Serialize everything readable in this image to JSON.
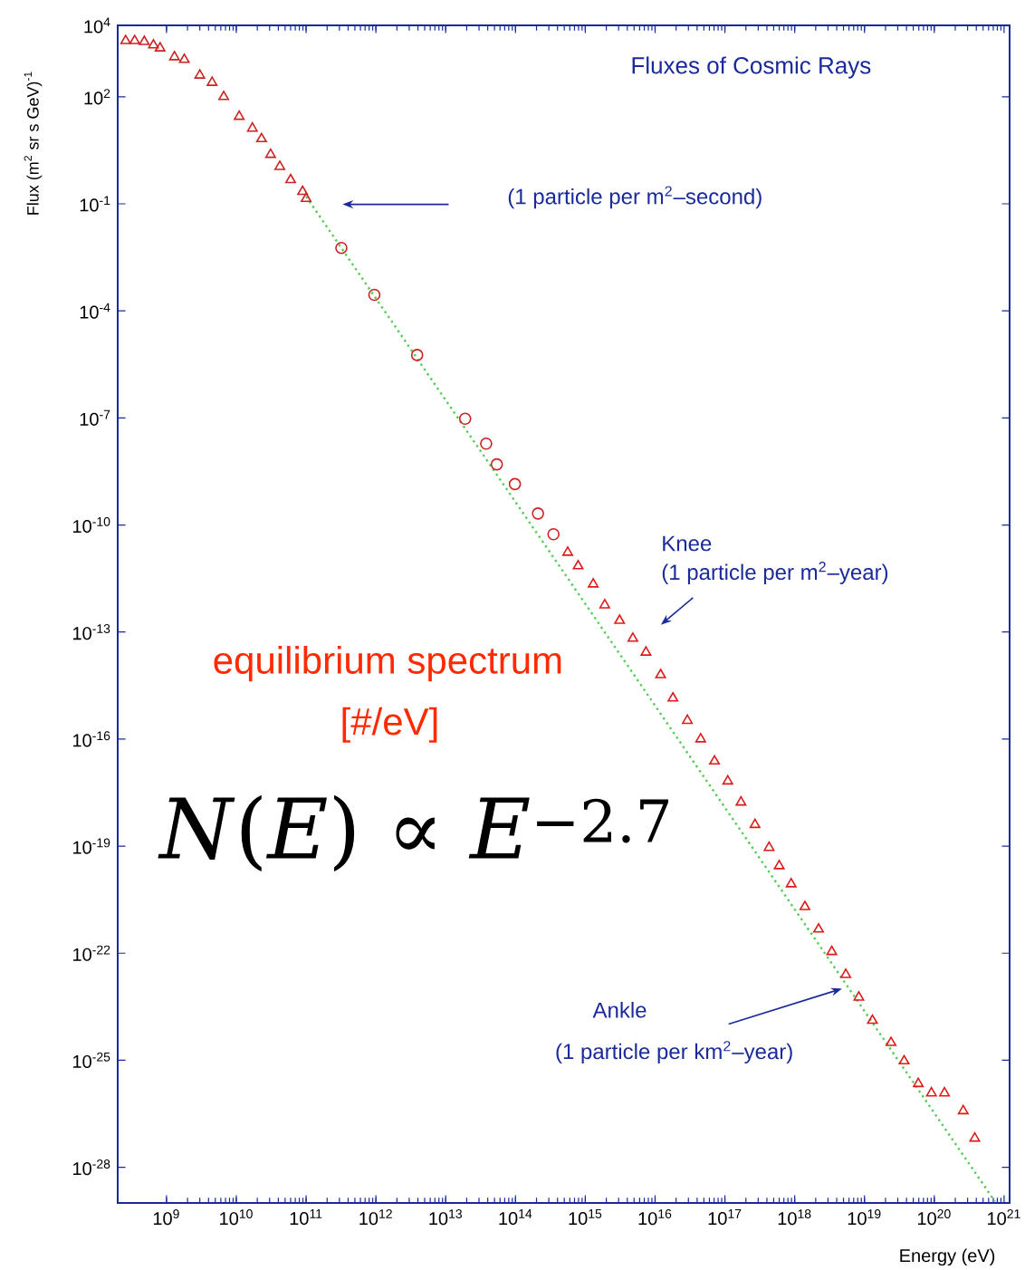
{
  "chart_data": {
    "type": "scatter",
    "title": "Fluxes of Cosmic Rays",
    "xlabel": "Energy (eV)",
    "ylabel": "Flux (m$^{2}$ sr s GeV)$^{-1}$",
    "log": "xy",
    "xlim": [
      200000000.0,
      1.2e+21
    ],
    "ylim": [
      1e-29,
      10000.0
    ],
    "xticks": [
      {
        "value": 1000000000.0,
        "label": "10$^{9}$"
      },
      {
        "value": 10000000000.0,
        "label": "10$^{10}$"
      },
      {
        "value": 100000000000.0,
        "label": "10$^{11}$"
      },
      {
        "value": 1000000000000.0,
        "label": "10$^{12}$"
      },
      {
        "value": 10000000000000.0,
        "label": "10$^{13}$"
      },
      {
        "value": 100000000000000.0,
        "label": "10$^{14}$"
      },
      {
        "value": 1000000000000000.0,
        "label": "10$^{15}$"
      },
      {
        "value": 1e+16,
        "label": "10$^{16}$"
      },
      {
        "value": 1e+17,
        "label": "10$^{17}$"
      },
      {
        "value": 1e+18,
        "label": "10$^{18}$"
      },
      {
        "value": 1e+19,
        "label": "10$^{19}$"
      },
      {
        "value": 1e+20,
        "label": "10$^{20}$"
      },
      {
        "value": 1e+21,
        "label": "10$^{21}$"
      }
    ],
    "yticks": [
      {
        "value": 1e-28,
        "label": "10$^{-28}$"
      },
      {
        "value": 1e-25,
        "label": "10$^{-25}$"
      },
      {
        "value": 1e-22,
        "label": "10$^{-22}$"
      },
      {
        "value": 1e-19,
        "label": "10$^{-19}$"
      },
      {
        "value": 1e-16,
        "label": "10$^{-16}$"
      },
      {
        "value": 1e-13,
        "label": "10$^{-13}$"
      },
      {
        "value": 1e-10,
        "label": "10$^{-10}$"
      },
      {
        "value": 1e-07,
        "label": "10$^{-7}$"
      },
      {
        "value": 0.0001,
        "label": "10$^{-4}$"
      },
      {
        "value": 0.1,
        "label": "10$^{-1}$"
      },
      {
        "value": 100,
        "label": "10$^{2}$"
      },
      {
        "value": 10000.0,
        "label": "10$^{4}$"
      }
    ],
    "series": [
      {
        "marker": "triangle",
        "color": "#cc2222",
        "x": [
          260000000.0,
          350000000.0,
          480000000.0,
          650000000.0,
          810000000.0,
          1300000000.0,
          1800000000.0,
          3000000000.0,
          4500000000.0,
          6600000000.0,
          11000000000.0,
          17000000000.0,
          23000000000.0,
          31000000000.0,
          42000000000.0,
          60000000000.0,
          89000000000.0,
          100000000000.0
        ],
        "values": [
          3700.0,
          3700.0,
          3500.0,
          2800.0,
          2300.0,
          1300.0,
          1100.0,
          400.0,
          250.0,
          100.0,
          28,
          13,
          6.6,
          2.4,
          1.1,
          0.47,
          0.22,
          0.14
        ]
      },
      {
        "marker": "circle",
        "color": "#cc2222",
        "x": [
          320000000000.0,
          950000000000.0,
          3900000000000.0,
          19000000000000.0,
          38000000000000.0,
          54000000000000.0,
          98000000000000.0,
          210000000000000.0,
          350000000000000.0
        ],
        "values": [
          0.0058,
          0.00028,
          5.8e-06,
          9.5e-08,
          1.9e-08,
          5e-09,
          1.4e-09,
          2.1e-10,
          5.5e-11
        ]
      },
      {
        "marker": "triangle",
        "color": "#dd1a1a",
        "x": [
          560000000000000.0,
          790000000000000.0,
          1300000000000000.0,
          1900000000000000.0,
          3100000000000000.0,
          4800000000000000.0,
          7400000000000000.0,
          1.2e+16,
          1.8e+16,
          2.9e+16,
          4.5e+16,
          7.1e+16,
          1.1e+17,
          1.7e+17,
          2.7e+17,
          4.3e+17,
          6e+17,
          8.9e+17,
          1.4e+18,
          2.2e+18,
          3.4e+18,
          5.4e+18,
          8.3e+18,
          1.3e+19,
          2.4e+19,
          3.7e+19,
          5.9e+19,
          9.1e+19,
          1.4e+20,
          2.6e+20,
          3.8e+20
        ],
        "values": [
          1.7e-11,
          7.1e-12,
          2.2e-12,
          5.7e-13,
          2.1e-13,
          6.6e-14,
          2.7e-14,
          6.3e-15,
          1.4e-15,
          3.3e-16,
          1e-16,
          2.4e-17,
          6.6e-18,
          1.7e-18,
          4e-19,
          9.1e-20,
          2.8e-20,
          8.7e-21,
          2e-21,
          4.7e-22,
          1.1e-22,
          2.5e-23,
          5.8e-24,
          1.3e-24,
          3.1e-25,
          9.5e-26,
          2.2e-26,
          1.2e-26,
          1.2e-26,
          3.8e-27,
          6.5e-28
        ]
      },
      {
        "type": "line",
        "marker": "none",
        "line_style": "dotted",
        "color": "#55cc55",
        "x": [
          100000000000.0,
          7.4e+20
        ],
        "values": [
          0.16,
          1.1e-29
        ]
      }
    ],
    "annotations": [
      "(1 particle per m$^{2}$–second)",
      "Knee",
      "(1 particle per m$^{2}$–year)",
      "Ankle",
      "(1 particle per km$^{2}$–year)",
      "equilibrium spectrum",
      "[#/eV]",
      "*N*(*E*) ∝ *E*$^{−2.7}$"
    ]
  }
}
